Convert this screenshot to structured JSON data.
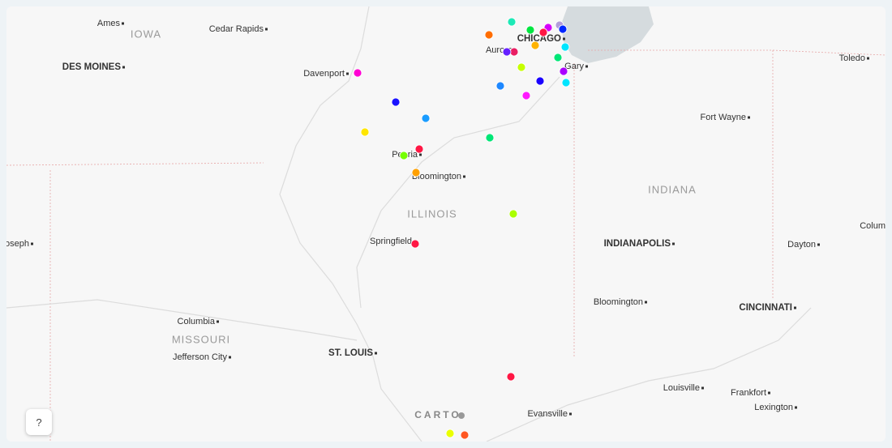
{
  "map": {
    "states": [
      "IOWA",
      "ILLINOIS",
      "INDIANA",
      "MISSOURI"
    ],
    "cities": [
      "Ames",
      "Cedar Rapids",
      "DES MOINES",
      "Davenport",
      "CHICAGO",
      "Aurora",
      "Gary",
      "Toledo",
      "Fort Wayne",
      "Peoria",
      "Bloomington",
      "Springfield",
      "INDIANAPOLIS",
      "Dayton",
      "Colum",
      "oseph",
      "Columbia",
      "Jefferson City",
      "ST. LOUIS",
      "Bloomington",
      "CINCINNATI",
      "Louisville",
      "Frankfort",
      "Lexington",
      "Evansville"
    ],
    "attribution": "CARTO",
    "help_button": "?"
  }
}
